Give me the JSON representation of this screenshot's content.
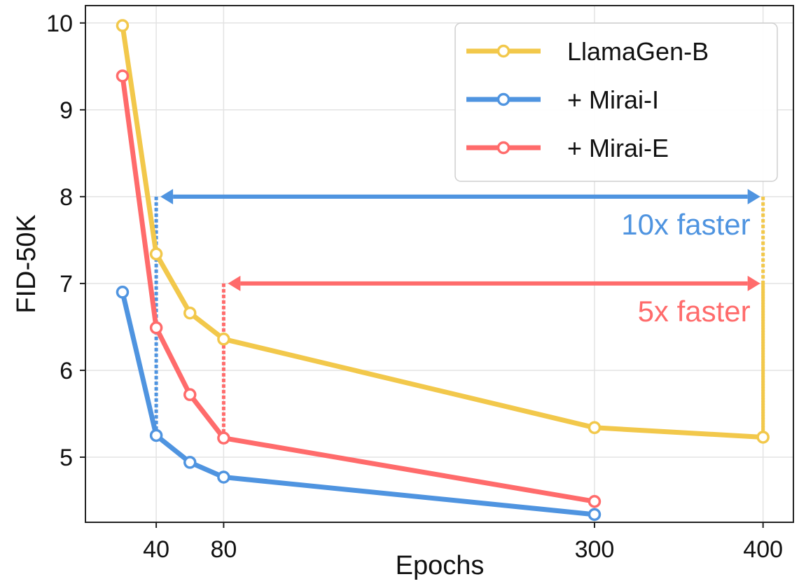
{
  "chart_data": {
    "type": "line",
    "xlabel": "Epochs",
    "ylabel": "FID-50K",
    "x_ticks": [
      40,
      80,
      300,
      400
    ],
    "y_ticks": [
      5,
      6,
      7,
      8,
      9,
      10
    ],
    "xlim": [
      -2,
      418
    ],
    "ylim": [
      4.25,
      10.2
    ],
    "grid": true,
    "legend_position": "top-right",
    "series": [
      {
        "name": "LlamaGen-B",
        "color": "#F2C84B",
        "x": [
          20,
          40,
          60,
          80,
          300,
          400
        ],
        "y": [
          9.97,
          7.34,
          6.66,
          6.36,
          5.34,
          5.23
        ]
      },
      {
        "name": "+ Mirai-I",
        "color": "#4F94E0",
        "x": [
          20,
          40,
          60,
          80,
          300
        ],
        "y": [
          6.9,
          5.25,
          4.94,
          4.77,
          4.34
        ]
      },
      {
        "name": "+ Mirai-E",
        "color": "#FF6B6B",
        "x": [
          20,
          40,
          60,
          80,
          300
        ],
        "y": [
          9.39,
          6.49,
          5.72,
          5.22,
          4.49
        ]
      }
    ],
    "annotations": [
      {
        "text": "10x faster",
        "color": "#4F94E0",
        "arrow_from_x": 40,
        "arrow_to_x": 400,
        "y": 8.0,
        "drop_left_color": "#4F94E0",
        "drop_left_to_y": 5.25,
        "drop_right_color": "#F2C84B",
        "drop_right_to_y": 5.23
      },
      {
        "text": "5x faster",
        "color": "#FF6B6B",
        "arrow_from_x": 80,
        "arrow_to_x": 400,
        "y": 7.0,
        "drop_left_color": "#FF6B6B",
        "drop_left_to_y": 5.22,
        "drop_right_color": "#F2C84B",
        "drop_right_to_y": 5.23
      }
    ]
  }
}
